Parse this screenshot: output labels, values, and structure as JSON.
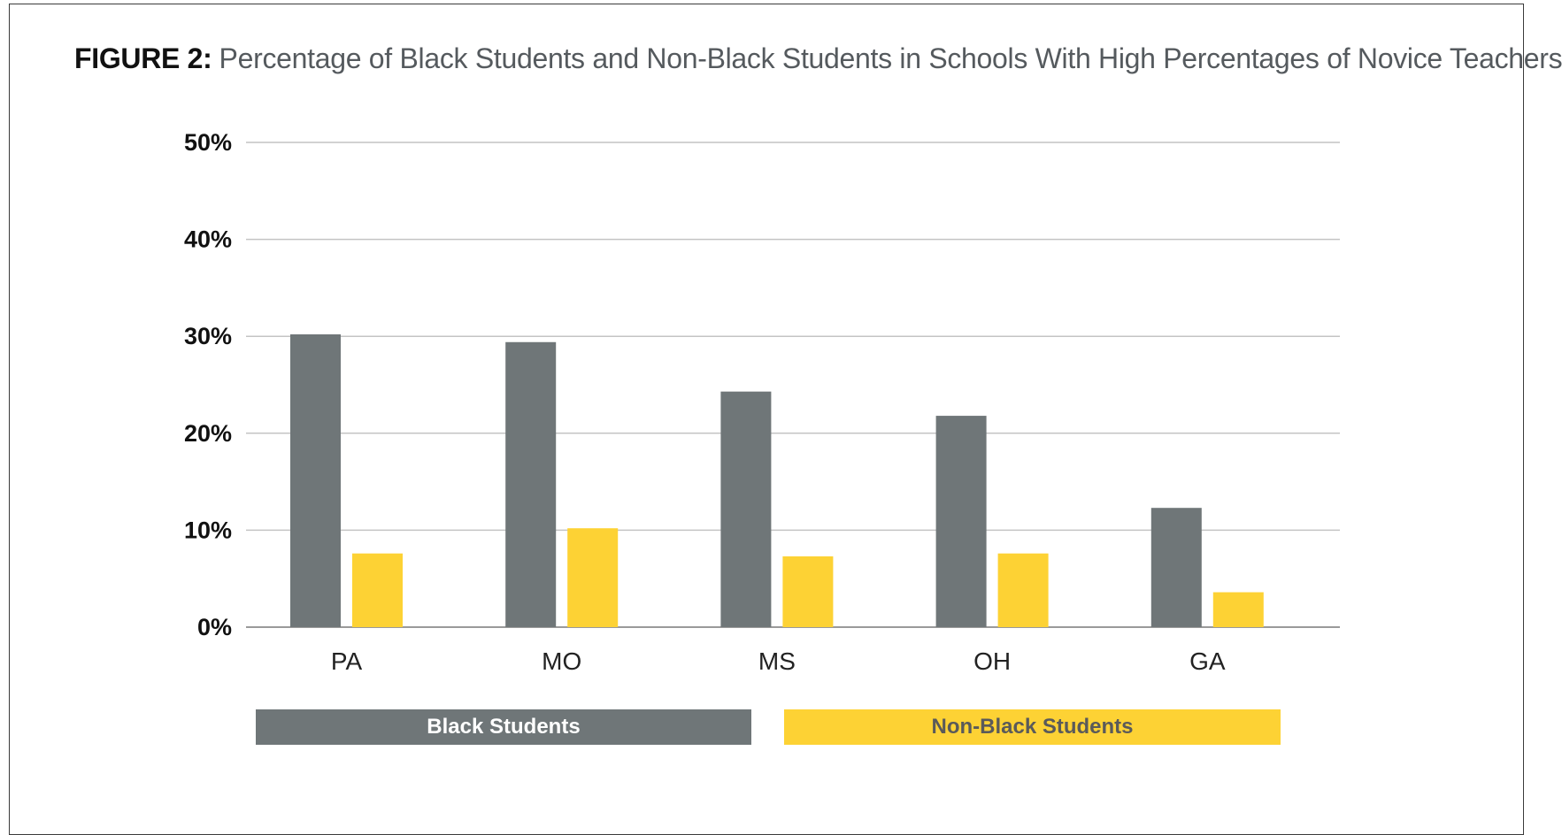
{
  "figure": {
    "label": "FIGURE 2:",
    "title": "Percentage of Black Students and Non-Black Students in Schools With High Percentages of Novice Teachers"
  },
  "chart_data": {
    "type": "bar",
    "title": "FIGURE 2: Percentage of Black Students and Non-Black Students in Schools With High Percentages of Novice Teachers",
    "xlabel": "",
    "ylabel": "",
    "categories": [
      "PA",
      "MO",
      "MS",
      "OH",
      "GA"
    ],
    "series": [
      {
        "name": "Black Students",
        "values": [
          30.2,
          29.4,
          24.3,
          21.8,
          12.3
        ],
        "color": "#6f7678",
        "legend_text_color": "#ffffff"
      },
      {
        "name": "Non-Black Students",
        "values": [
          7.6,
          10.2,
          7.3,
          7.6,
          3.6
        ],
        "color": "#fdd234",
        "legend_text_color": "#5a5a5a"
      }
    ],
    "ylim": [
      0,
      50
    ],
    "yticks": [
      0,
      10,
      20,
      30,
      40,
      50
    ],
    "ytick_labels": [
      "0%",
      "10%",
      "20%",
      "30%",
      "40%",
      "50%"
    ],
    "grid": true,
    "legend_position": "bottom"
  }
}
